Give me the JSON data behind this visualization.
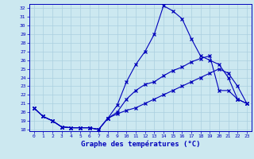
{
  "xlabel": "Graphe des températures (°C)",
  "background_color": "#cce8f0",
  "grid_color": "#aacfdf",
  "line_color": "#0000bb",
  "xlim_min": -0.5,
  "xlim_max": 23.5,
  "ylim_min": 17.8,
  "ylim_max": 32.5,
  "yticks": [
    18,
    19,
    20,
    21,
    22,
    23,
    24,
    25,
    26,
    27,
    28,
    29,
    30,
    31,
    32
  ],
  "xticks": [
    0,
    1,
    2,
    3,
    4,
    5,
    6,
    7,
    8,
    9,
    10,
    11,
    12,
    13,
    14,
    15,
    16,
    17,
    18,
    19,
    20,
    21,
    22,
    23
  ],
  "line1_x": [
    0,
    1,
    2,
    3,
    4,
    5,
    6,
    7,
    8,
    9,
    10,
    11,
    12,
    13,
    14,
    15,
    16,
    17,
    18,
    19,
    20,
    21,
    22,
    23
  ],
  "line1_y": [
    20.5,
    19.5,
    19.0,
    18.3,
    18.2,
    18.2,
    18.2,
    18.0,
    19.3,
    20.8,
    23.5,
    25.5,
    27.0,
    29.0,
    32.3,
    31.7,
    30.8,
    28.5,
    26.5,
    26.0,
    25.5,
    24.0,
    21.5,
    21.0
  ],
  "line2_x": [
    0,
    1,
    2,
    3,
    4,
    5,
    6,
    7,
    8,
    9,
    10,
    11,
    12,
    13,
    14,
    15,
    16,
    17,
    18,
    19,
    20,
    21,
    22,
    23
  ],
  "line2_y": [
    20.5,
    19.5,
    19.0,
    18.3,
    18.2,
    18.2,
    18.2,
    18.0,
    19.3,
    20.0,
    21.5,
    22.5,
    23.2,
    23.5,
    24.2,
    24.8,
    25.2,
    25.8,
    26.2,
    26.5,
    22.5,
    22.5,
    21.5,
    21.0
  ],
  "line3_x": [
    0,
    1,
    2,
    3,
    4,
    5,
    6,
    7,
    8,
    9,
    10,
    11,
    12,
    13,
    14,
    15,
    16,
    17,
    18,
    19,
    20,
    21,
    22,
    23
  ],
  "line3_y": [
    20.5,
    19.5,
    19.0,
    18.3,
    18.2,
    18.2,
    18.2,
    18.0,
    19.3,
    19.8,
    20.2,
    20.5,
    21.0,
    21.5,
    22.0,
    22.5,
    23.0,
    23.5,
    24.0,
    24.5,
    25.0,
    24.5,
    23.0,
    21.0
  ]
}
